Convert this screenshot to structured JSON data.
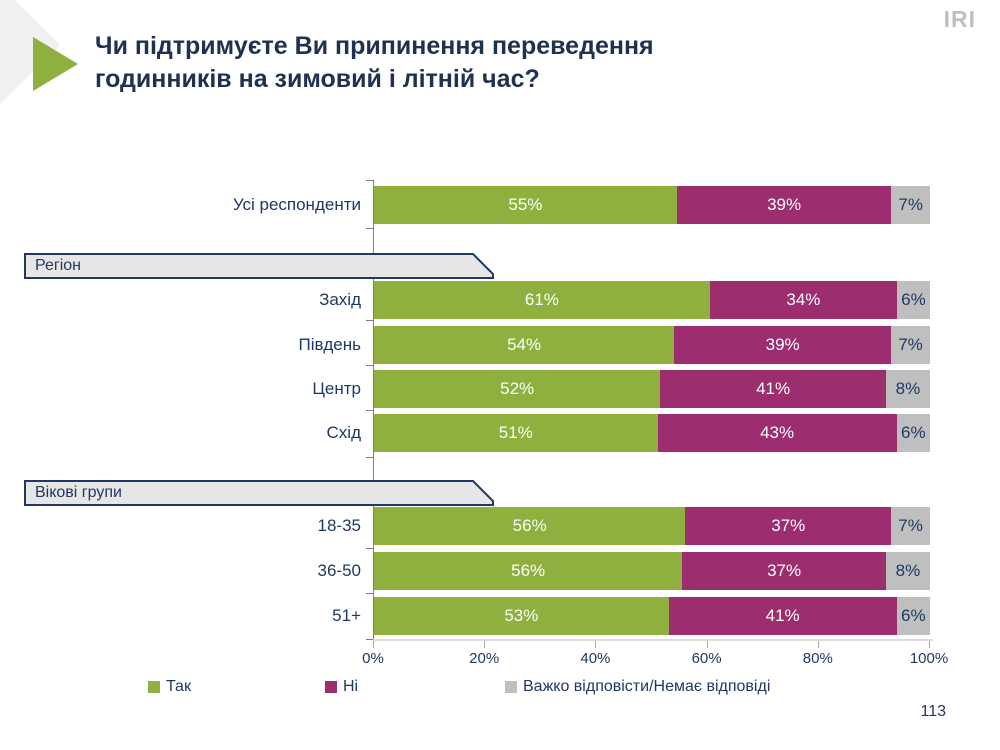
{
  "slide": {
    "logo": "IRI",
    "title": "Чи підтримуєте Ви припинення переведення годинників на зимовий і літній час?",
    "page_number": "113"
  },
  "colors": {
    "green": "#8fb03e",
    "purple": "#9c2d6f",
    "gray": "#bfbfbf",
    "navy": "#1f3864",
    "header_fill": "#e6e6e6",
    "header_border": "#1f3864"
  },
  "chart_data": {
    "type": "bar",
    "orientation": "horizontal-stacked-100",
    "title": "Чи підтримуєте Ви припинення переведення годинників на зимовий і літній час?",
    "series_names": [
      "Так",
      "Ні",
      "Важко відповісти/Немає відповіді"
    ],
    "x_axis": {
      "min": 0,
      "max": 100,
      "tick_labels": [
        "0%",
        "20%",
        "40%",
        "60%",
        "80%",
        "100%"
      ]
    },
    "value_suffix": "%",
    "groups": [
      {
        "header": null,
        "rows": [
          {
            "label": "Усі респонденти",
            "values": [
              55,
              39,
              7
            ]
          }
        ]
      },
      {
        "header": "Регіон",
        "rows": [
          {
            "label": "Захід",
            "values": [
              61,
              34,
              6
            ]
          },
          {
            "label": "Південь",
            "values": [
              54,
              39,
              7
            ]
          },
          {
            "label": "Центр",
            "values": [
              52,
              41,
              8
            ]
          },
          {
            "label": "Схід",
            "values": [
              51,
              43,
              6
            ]
          }
        ]
      },
      {
        "header": "Вікові групи",
        "rows": [
          {
            "label": "18-35",
            "values": [
              56,
              37,
              7
            ]
          },
          {
            "label": "36-50",
            "values": [
              56,
              37,
              8
            ]
          },
          {
            "label": "51+",
            "values": [
              53,
              41,
              6
            ]
          }
        ]
      }
    ],
    "legend": [
      {
        "label": "Так",
        "color": "#8fb03e"
      },
      {
        "label": "Ні",
        "color": "#9c2d6f"
      },
      {
        "label": "Важко відповісти/Немає відповіді",
        "color": "#bfbfbf"
      }
    ],
    "legend_position": "bottom",
    "grid": false
  }
}
